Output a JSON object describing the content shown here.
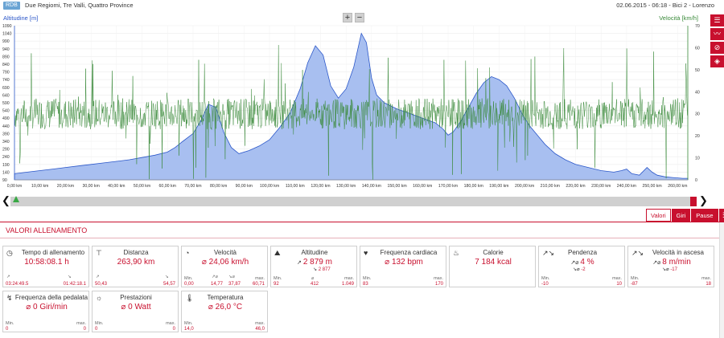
{
  "header": {
    "logo": "RDB",
    "route": "Due Regiomi, Tre Valli, Quattro Province",
    "date": "02.06.2015",
    "time": "06:18",
    "bike": "Bici 2",
    "rider": "Lorenzo"
  },
  "chart": {
    "left_label": "Altitudine [m]",
    "right_label": "Velocità [km/h]",
    "zoom_in": "+",
    "zoom_out": "−"
  },
  "chart_data": {
    "type": "area",
    "xlabel": "",
    "x_unit": "km",
    "xlim": [
      0,
      264
    ],
    "x_ticks": [
      "0,00 km",
      "10,00 km",
      "20,00 km",
      "30,00 km",
      "40,00 km",
      "50,00 km",
      "60,00 km",
      "70,00 km",
      "80,00 km",
      "90,00 km",
      "100,00 km",
      "110,00 km",
      "120,00 km",
      "130,00 km",
      "140,00 km",
      "150,00 km",
      "160,00 km",
      "170,00 km",
      "180,00 km",
      "190,00 km",
      "200,00 km",
      "210,00 km",
      "220,00 km",
      "230,00 km",
      "240,00 km",
      "250,00 km",
      "260,00 km"
    ],
    "y_left_ticks": [
      "1090",
      "1040",
      "990",
      "940",
      "890",
      "840",
      "790",
      "740",
      "690",
      "640",
      "590",
      "540",
      "490",
      "440",
      "390",
      "340",
      "290",
      "240",
      "190",
      "140",
      "90"
    ],
    "ylim_left": [
      90,
      1090
    ],
    "y_right_ticks": [
      "70",
      "60",
      "50",
      "40",
      "30",
      "20",
      "10",
      "0"
    ],
    "ylim_right": [
      0,
      70
    ],
    "series": [
      {
        "name": "Altitudine [m]",
        "color": "#2b57c9",
        "fill": "#a8bff0",
        "x": [
          0,
          5,
          10,
          15,
          20,
          25,
          30,
          35,
          40,
          45,
          50,
          55,
          60,
          63,
          66,
          70,
          73,
          76,
          79,
          82,
          85,
          88,
          92,
          96,
          100,
          104,
          108,
          112,
          115,
          118,
          121,
          124,
          127,
          130,
          133,
          136,
          138,
          140,
          142,
          145,
          150,
          155,
          160,
          165,
          168,
          170,
          172,
          175,
          178,
          181,
          184,
          187,
          190,
          193,
          196,
          199,
          202,
          205,
          208,
          212,
          216,
          220,
          225,
          230,
          235,
          238,
          240,
          242,
          245,
          248,
          250,
          252,
          255,
          258,
          262,
          264
        ],
        "y": [
          130,
          140,
          150,
          160,
          170,
          180,
          190,
          200,
          210,
          220,
          235,
          250,
          270,
          300,
          340,
          390,
          470,
          580,
          560,
          400,
          300,
          260,
          280,
          310,
          350,
          430,
          520,
          680,
          850,
          960,
          900,
          700,
          620,
          680,
          820,
          1040,
          980,
          750,
          640,
          590,
          550,
          520,
          490,
          460,
          420,
          380,
          400,
          470,
          560,
          650,
          720,
          760,
          740,
          700,
          620,
          520,
          440,
          380,
          320,
          260,
          220,
          190,
          170,
          150,
          140,
          150,
          160,
          130,
          120,
          170,
          140,
          120,
          110,
          105,
          100,
          100
        ]
      },
      {
        "name": "Velocità [km/h]",
        "color": "#3a8a3a",
        "x": [
          0,
          264
        ],
        "y": [
          30,
          30
        ]
      }
    ],
    "grid": true,
    "legend": "none"
  },
  "toolbar_icons": [
    "list-icon",
    "line-chart-icon",
    "no-gps-icon",
    "map-icon"
  ],
  "tabs": {
    "valori": "Valori",
    "giri": "Giri",
    "pause": "Pause"
  },
  "section": {
    "title": "VALORI ALLENAMENTO"
  },
  "labels": {
    "min": "Min.",
    "max": "max."
  },
  "cards": {
    "tempo": {
      "title": "Tempo di allenamento",
      "value": "10:58:08.1 h",
      "left": "03:24:49.5",
      "right": "01:42:18.1"
    },
    "distanza": {
      "title": "Distanza",
      "value": "263,90 km",
      "left": "50,43",
      "right": "54,57"
    },
    "velocita": {
      "title": "Velocità",
      "value": "⌀ 24,06 km/h",
      "min": "0,00",
      "up": "14,77",
      "down": "37,87",
      "max": "60,71"
    },
    "altitudine": {
      "title": "Altitudine",
      "value": "2 879 m",
      "sub": "2 877",
      "min": "92",
      "avg": "412",
      "max": "1.049"
    },
    "frequenza": {
      "title": "Frequenza cardiaca",
      "value": "⌀ 132 bpm",
      "min": "83",
      "max": "170"
    },
    "calorie": {
      "title": "Calorie",
      "value": "7 184 kcal"
    },
    "pendenza": {
      "title": "Pendenza",
      "value": "4 %",
      "sub": "-2",
      "min": "-10",
      "max": "10"
    },
    "ascesa": {
      "title": "Velocità in ascesa",
      "value": "8 m/min",
      "sub": "-17",
      "min": "-87",
      "max": "18"
    },
    "pedalata": {
      "title": "Frequenza della pedalata",
      "value": "⌀ 0 Giri/min",
      "min": "0",
      "max": "0"
    },
    "prestazioni": {
      "title": "Prestazioni",
      "value": "⌀ 0 Watt",
      "min": "0",
      "max": "0"
    },
    "temperatura": {
      "title": "Temperatura",
      "value": "⌀ 26,0 °C",
      "min": "14,0",
      "max": "46,0"
    }
  }
}
